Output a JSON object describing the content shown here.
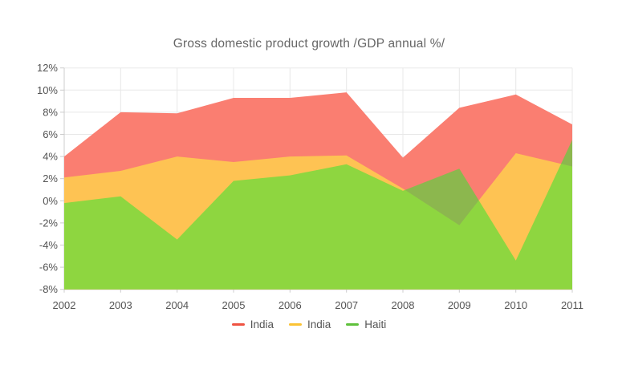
{
  "chart_data": {
    "type": "area",
    "title": "Gross domestic product growth /GDP annual %/",
    "categories": [
      "2002",
      "2003",
      "2004",
      "2005",
      "2006",
      "2007",
      "2008",
      "2009",
      "2010",
      "2011"
    ],
    "series": [
      {
        "name": "India",
        "legend_color": "#ef5342",
        "fill": "#fa7e71",
        "fill_opacity": 1,
        "values": [
          4.0,
          8.0,
          7.9,
          9.3,
          9.3,
          9.8,
          3.9,
          8.4,
          9.6,
          6.9
        ]
      },
      {
        "name": "India",
        "legend_color": "#fbc334",
        "fill": "#fec353",
        "fill_opacity": 1,
        "values": [
          2.1,
          2.7,
          4.0,
          3.5,
          4.0,
          4.1,
          1.1,
          -2.2,
          4.3,
          3.1
        ]
      },
      {
        "name": "Haiti",
        "legend_color": "#5fc13c",
        "fill": "#32e531",
        "fill_opacity": 0.55,
        "visible_fill": "#8ed640",
        "overlap_fill": "#8cb84e",
        "values": [
          -0.2,
          0.4,
          -3.5,
          1.8,
          2.3,
          3.3,
          0.9,
          2.9,
          -5.4,
          5.5
        ]
      }
    ],
    "xlabel": "",
    "ylabel": "",
    "ylim": [
      -8,
      12
    ],
    "ytick_step": 2,
    "ytick_labels": [
      "12%",
      "10%",
      "8%",
      "6%",
      "4%",
      "2%",
      "0%",
      "-2%",
      "-4%",
      "-6%",
      "-8%"
    ],
    "grid": true,
    "legend_position": "bottom",
    "fill_to": "chart-bottom",
    "grid_color": "#e8e8e8",
    "axis_color": "#cccccc",
    "label_color": "#545454",
    "title_color": "#666666"
  }
}
